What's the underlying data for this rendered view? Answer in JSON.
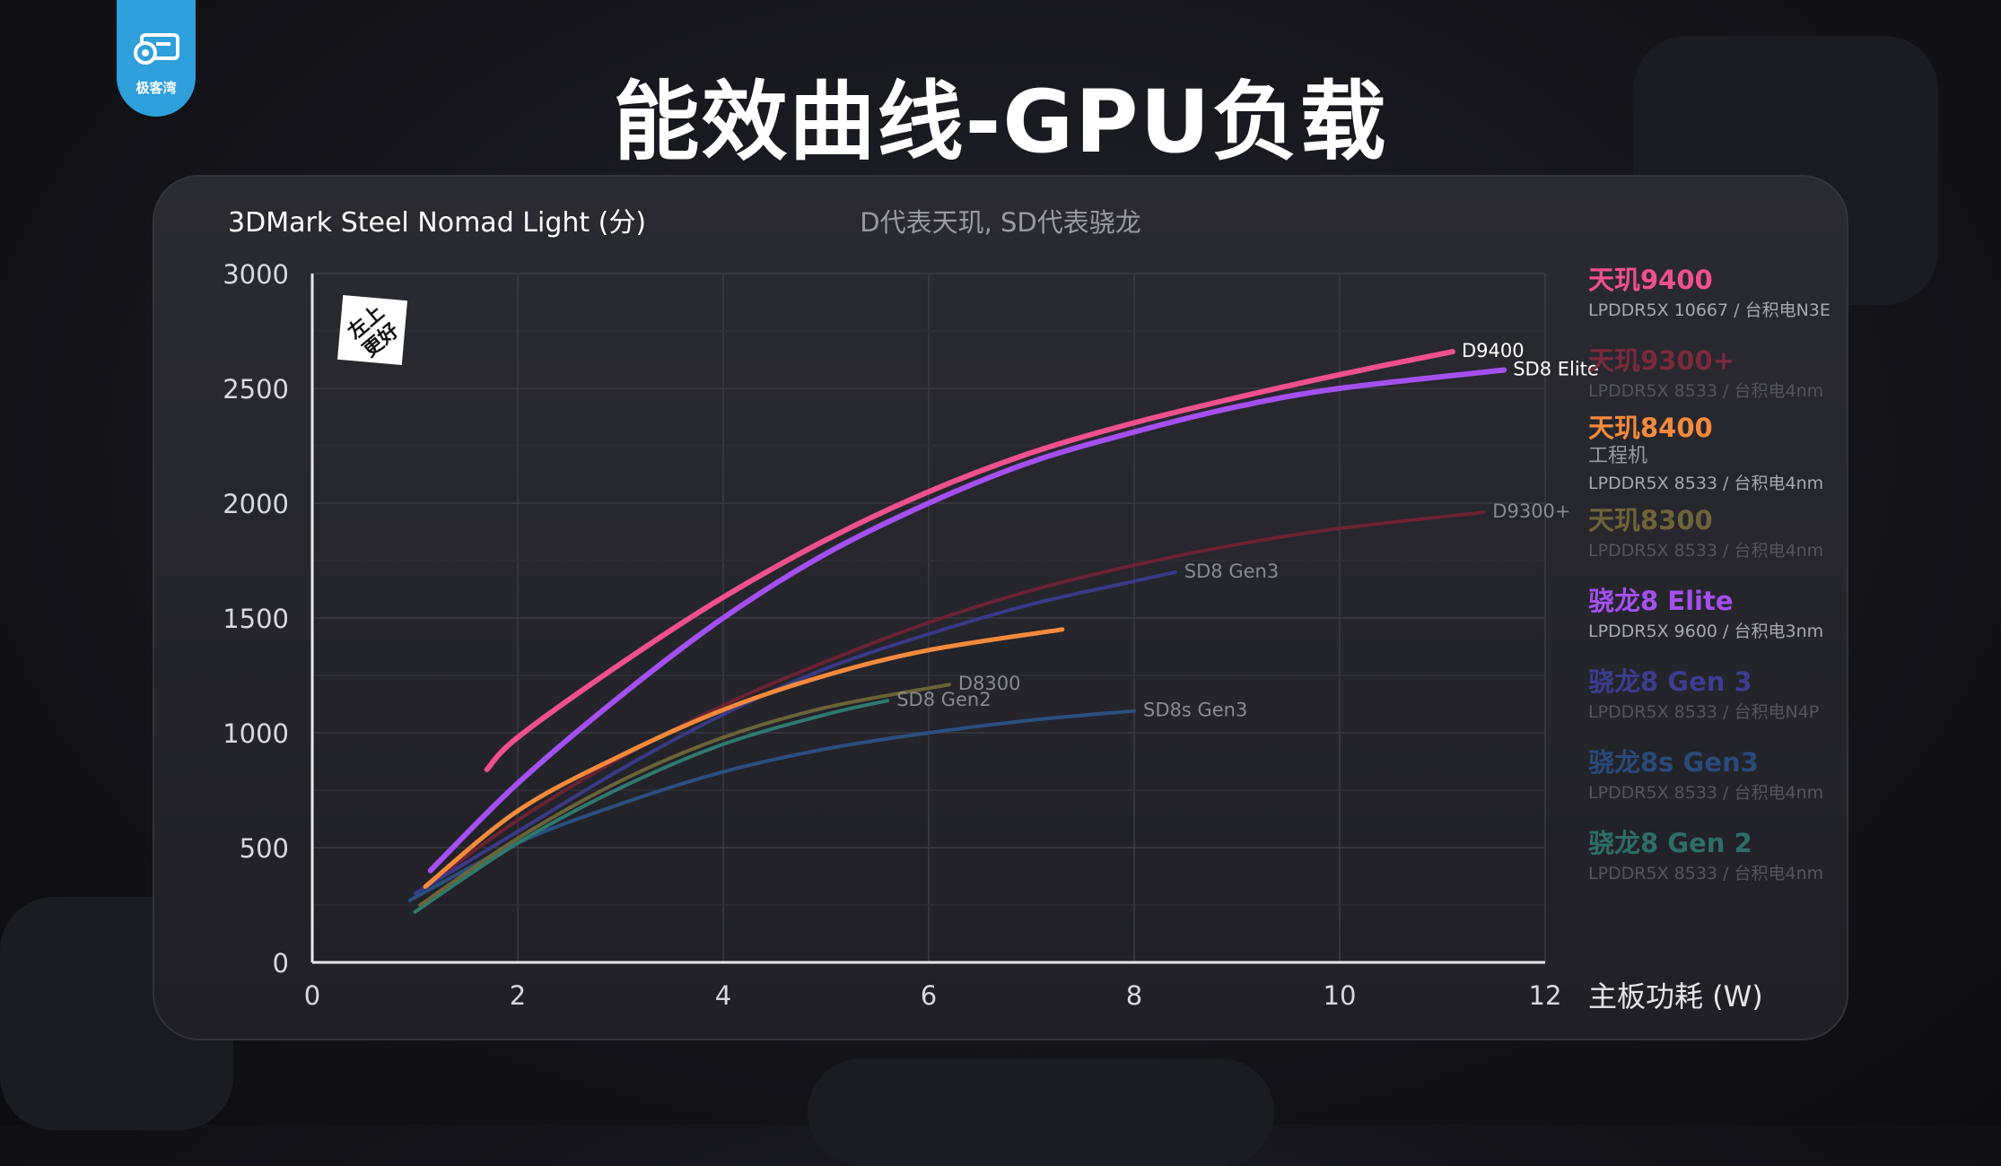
{
  "header": {
    "title": "能效曲线-GPU负载",
    "logo_text": "极客湾"
  },
  "badge": {
    "line1": "左上",
    "line2": "更好"
  },
  "chart_data": {
    "type": "line",
    "title": "3DMark Steel Nomad Light (分)",
    "subtitle": "D代表天玑, SD代表骁龙",
    "xlabel": "主板功耗 (W)",
    "ylabel": "3DMark Steel Nomad Light (分)",
    "xlim": [
      0,
      12
    ],
    "ylim": [
      0,
      3000
    ],
    "xticks": [
      0,
      2,
      4,
      6,
      8,
      10,
      12
    ],
    "yticks": [
      0,
      500,
      1000,
      1500,
      2000,
      2500,
      3000
    ],
    "grid": true,
    "legend_position": "right",
    "legend": [
      {
        "name": "天玑9400",
        "sub": "LPDDR5X 10667 / 台积电N3E",
        "color": "#f0508e",
        "dim": false
      },
      {
        "name": "天玑9300+",
        "sub": "LPDDR5X 8533 / 台积电4nm",
        "color": "#7a2a3c",
        "dim": true
      },
      {
        "name": "天玑8400",
        "sub2": "工程机",
        "sub": "LPDDR5X 8533 / 台积电4nm",
        "color": "#f58a3d",
        "dim": false
      },
      {
        "name": "天玑8300",
        "sub": "LPDDR5X 8533 / 台积电4nm",
        "color": "#6e6438",
        "dim": true
      },
      {
        "name": "骁龙8 Elite",
        "sub": "LPDDR5X 9600 / 台积电3nm",
        "color": "#a450f0",
        "dim": false
      },
      {
        "name": "骁龙8 Gen 3",
        "sub": "LPDDR5X 8533 / 台积电N4P",
        "color": "#3c3c90",
        "dim": true
      },
      {
        "name": "骁龙8s Gen3",
        "sub": "LPDDR5X 8533 / 台积电4nm",
        "color": "#2a4a7a",
        "dim": true
      },
      {
        "name": "骁龙8 Gen 2",
        "sub": "LPDDR5X 8533 / 台积电4nm",
        "color": "#2e6e68",
        "dim": true
      }
    ],
    "series": [
      {
        "name": "D9300+",
        "label": "D9300+",
        "color": "#6b2232",
        "width": 4,
        "x": [
          1.1,
          2,
          3,
          4,
          5,
          6,
          7,
          8,
          9,
          10,
          11.4
        ],
        "y": [
          330,
          620,
          890,
          1120,
          1310,
          1480,
          1620,
          1730,
          1820,
          1890,
          1960
        ]
      },
      {
        "name": "SD8 Gen3",
        "label": "SD8 Gen3",
        "color": "#3a3a88",
        "width": 4,
        "x": [
          1.0,
          2,
          3,
          4,
          5,
          6,
          7,
          8,
          8.4
        ],
        "y": [
          300,
          570,
          840,
          1080,
          1280,
          1430,
          1560,
          1660,
          1700
        ]
      },
      {
        "name": "SD8s Gen3",
        "label": "SD8s Gen3",
        "color": "#2b4f80",
        "width": 4,
        "x": [
          0.95,
          2,
          3,
          4,
          5,
          6,
          7,
          8
        ],
        "y": [
          270,
          520,
          690,
          830,
          930,
          1000,
          1055,
          1095
        ]
      },
      {
        "name": "SD8 Gen2",
        "label": "SD8 Gen2",
        "color": "#2e7a70",
        "width": 4,
        "x": [
          1.0,
          2,
          3,
          4,
          5,
          5.6
        ],
        "y": [
          220,
          520,
          760,
          950,
          1080,
          1140
        ]
      },
      {
        "name": "D8300",
        "label": "D8300",
        "color": "#6b6438",
        "width": 4,
        "x": [
          1.05,
          2,
          3,
          4,
          5,
          6.2
        ],
        "y": [
          250,
          540,
          790,
          980,
          1110,
          1210
        ]
      },
      {
        "name": "D8400",
        "label": "",
        "color": "#f58a3d",
        "width": 5,
        "x": [
          1.1,
          2,
          3,
          4,
          5,
          6,
          7.3
        ],
        "y": [
          330,
          660,
          900,
          1100,
          1250,
          1360,
          1450
        ]
      },
      {
        "name": "SD8 Elite",
        "label": "SD8 Elite",
        "color": "#a450f0",
        "width": 6,
        "x": [
          1.15,
          2,
          3,
          4,
          5,
          6,
          7,
          8,
          9,
          10,
          11.6
        ],
        "y": [
          400,
          780,
          1160,
          1500,
          1780,
          2000,
          2180,
          2310,
          2420,
          2500,
          2580
        ]
      },
      {
        "name": "D9400",
        "label": "D9400",
        "color": "#f0508e",
        "width": 6,
        "x": [
          1.7,
          2,
          3,
          4,
          5,
          6,
          7,
          8,
          9,
          10,
          11.1
        ],
        "y": [
          840,
          980,
          1300,
          1590,
          1840,
          2050,
          2220,
          2350,
          2460,
          2560,
          2660
        ]
      }
    ]
  }
}
